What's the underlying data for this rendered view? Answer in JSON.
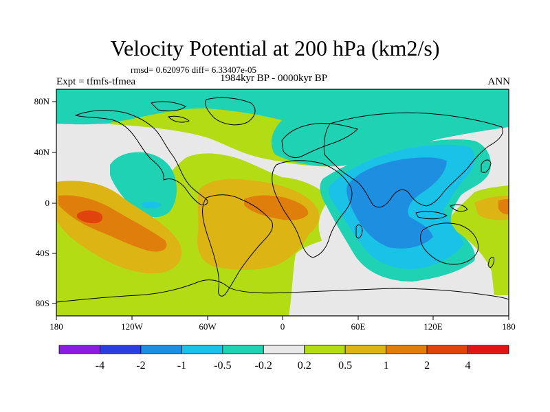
{
  "title": "Velocity Potential at 200 hPa (km2/s)",
  "stats_line": "rmsd= 0.620976 diff= 6.33407e-05",
  "expt_label": "Expt = tfmfs-tfmea",
  "period_label": "1984kyr BP - 0000kyr BP",
  "season_label": "ANN",
  "axes": {
    "lon_ticks": [
      "180",
      "120W",
      "60W",
      "0",
      "60E",
      "120E",
      "180"
    ],
    "lat_ticks": [
      "80N",
      "40N",
      "0",
      "40S",
      "80S"
    ]
  },
  "colorbar": {
    "labels": [
      "-4",
      "-2",
      "-1",
      "-0.5",
      "-0.2",
      "0.2",
      "0.5",
      "1",
      "2",
      "4"
    ],
    "colors": [
      "#8a1ee0",
      "#2a3ee0",
      "#1e8fe0",
      "#1ac2e8",
      "#20d2b4",
      "#e8e8e8",
      "#b4dc14",
      "#dcb414",
      "#e07e0c",
      "#e0440c",
      "#e01414"
    ]
  },
  "fill_colors": {
    "neg_strong": "#1e8fe0",
    "neg_mid": "#1ac2e8",
    "neg_weak": "#20d2b4",
    "neutral": "#e8e8e8",
    "pos_weak": "#b4dc14",
    "pos_mid": "#dcb414",
    "pos_strong": "#e07e0c",
    "pos_max": "#e0440c"
  }
}
